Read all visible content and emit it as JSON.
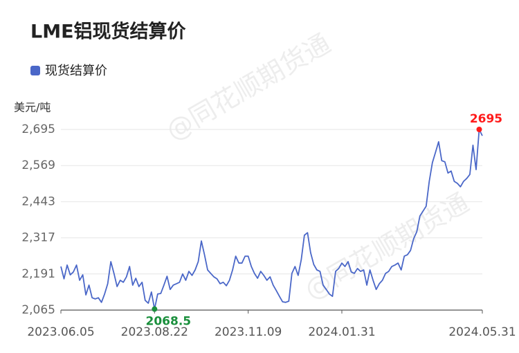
{
  "chart_data": {
    "type": "line",
    "title": "LME铝现货结算价",
    "y_axis_label": "美元/吨",
    "watermark": "@同花顺期货通",
    "legend": "top-left",
    "categories": [
      "2023.06.05",
      null,
      null,
      null,
      null,
      null,
      null,
      null,
      null,
      null,
      null,
      null,
      null,
      null,
      null,
      null,
      null,
      null,
      null,
      null,
      null,
      null,
      null,
      null,
      null,
      null,
      null,
      null,
      null,
      null,
      "2023.08.22",
      null,
      null,
      null,
      null,
      null,
      null,
      null,
      null,
      null,
      null,
      null,
      null,
      null,
      null,
      null,
      null,
      null,
      null,
      null,
      null,
      null,
      null,
      null,
      null,
      null,
      null,
      null,
      null,
      null,
      "2023.11.09",
      null,
      null,
      null,
      null,
      null,
      null,
      null,
      null,
      null,
      null,
      null,
      null,
      null,
      null,
      null,
      null,
      null,
      null,
      null,
      null,
      null,
      null,
      null,
      null,
      null,
      null,
      null,
      null,
      null,
      "2024.01.31",
      null,
      null,
      null,
      null,
      null,
      null,
      null,
      null,
      null,
      null,
      null,
      null,
      null,
      null,
      null,
      null,
      null,
      null,
      null,
      null,
      null,
      null,
      null,
      null,
      null,
      null,
      null,
      null,
      null,
      null,
      null,
      null,
      null,
      null,
      null,
      null,
      null,
      null,
      null,
      null,
      null,
      null,
      null,
      null,
      "2024.05.31"
    ],
    "series": [
      {
        "name": "现货结算价",
        "color": "#4a67c8",
        "values": [
          2217,
          2174,
          2222,
          2188,
          2198,
          2222,
          2169,
          2188,
          2118,
          2152,
          2108,
          2104,
          2108,
          2092,
          2121,
          2157,
          2234,
          2193,
          2147,
          2169,
          2162,
          2181,
          2217,
          2152,
          2176,
          2147,
          2162,
          2099,
          2089,
          2128,
          2068.5,
          2121,
          2123,
          2152,
          2183,
          2137,
          2152,
          2157,
          2162,
          2191,
          2169,
          2200,
          2186,
          2205,
          2234,
          2306,
          2258,
          2205,
          2193,
          2181,
          2174,
          2157,
          2162,
          2150,
          2169,
          2205,
          2253,
          2229,
          2229,
          2253,
          2253,
          2217,
          2193,
          2176,
          2200,
          2186,
          2169,
          2181,
          2152,
          2133,
          2113,
          2094,
          2092,
          2096,
          2193,
          2217,
          2186,
          2241,
          2326,
          2335,
          2265,
          2224,
          2205,
          2200,
          2152,
          2137,
          2121,
          2113,
          2200,
          2210,
          2229,
          2217,
          2234,
          2198,
          2193,
          2210,
          2200,
          2205,
          2152,
          2205,
          2169,
          2137,
          2157,
          2169,
          2193,
          2200,
          2217,
          2222,
          2229,
          2205,
          2253,
          2258,
          2273,
          2314,
          2338,
          2393,
          2410,
          2427,
          2514,
          2579,
          2615,
          2652,
          2586,
          2582,
          2543,
          2550,
          2514,
          2507,
          2495,
          2514,
          2524,
          2538,
          2640,
          2555,
          2695,
          2673
        ]
      }
    ],
    "ylim": [
      2065,
      2695
    ],
    "yticks": [
      {
        "value": 2065,
        "label": "2,065"
      },
      {
        "value": 2191,
        "label": "2,191"
      },
      {
        "value": 2317,
        "label": "2,317"
      },
      {
        "value": 2443,
        "label": "2,443"
      },
      {
        "value": 2569,
        "label": "2,569"
      },
      {
        "value": 2695,
        "label": "2,695"
      }
    ],
    "grid": true,
    "max_color": "#ff1a1a",
    "min_color": "#1a8f3c"
  }
}
